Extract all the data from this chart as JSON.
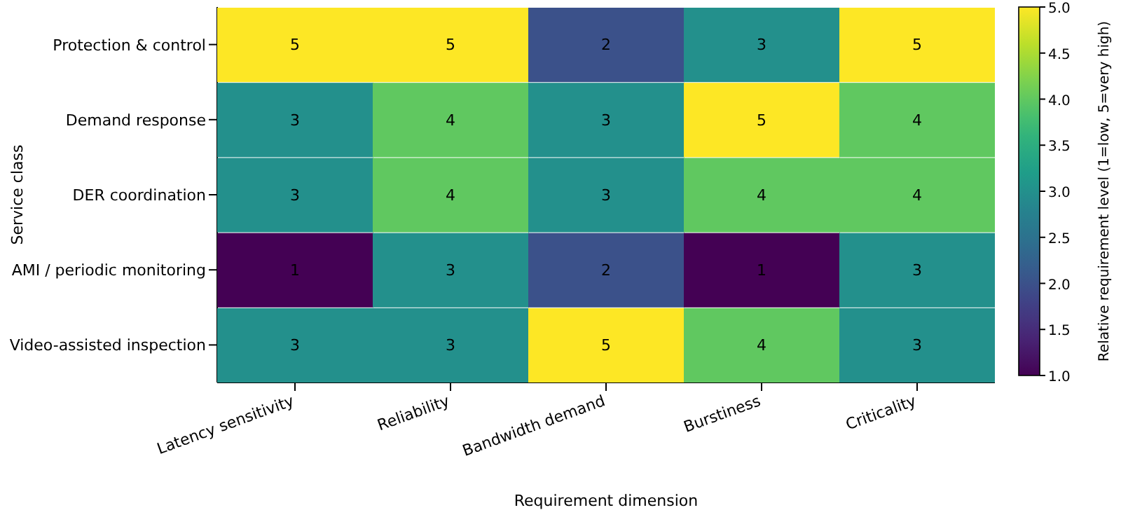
{
  "chart_data": {
    "type": "heatmap",
    "xlabel": "Requirement dimension",
    "ylabel": "Service class",
    "clabel": "Relative requirement level (1=low, 5=very high)",
    "categories": [
      "Latency sensitivity",
      "Reliability",
      "Bandwidth demand",
      "Burstiness",
      "Criticality"
    ],
    "y_categories": [
      "Protection & control",
      "Demand response",
      "DER coordination",
      "AMI / periodic monitoring",
      "Video-assisted inspection"
    ],
    "cells": [
      [
        5,
        5,
        2,
        3,
        5
      ],
      [
        3,
        4,
        3,
        5,
        4
      ],
      [
        3,
        4,
        3,
        4,
        4
      ],
      [
        1,
        3,
        2,
        1,
        3
      ],
      [
        3,
        3,
        5,
        4,
        3
      ]
    ],
    "data_labels": true,
    "clim": [
      1,
      5
    ],
    "cticks": [
      {
        "value": 1,
        "label": "1.0"
      },
      {
        "value": 1.5,
        "label": "1.5"
      },
      {
        "value": 2,
        "label": "2.0"
      },
      {
        "value": 2.5,
        "label": "2.5"
      },
      {
        "value": 3,
        "label": "3.0"
      },
      {
        "value": 3.5,
        "label": "3.5"
      },
      {
        "value": 4,
        "label": "4.0"
      },
      {
        "value": 4.5,
        "label": "4.5"
      },
      {
        "value": 5,
        "label": "5.0"
      }
    ]
  }
}
